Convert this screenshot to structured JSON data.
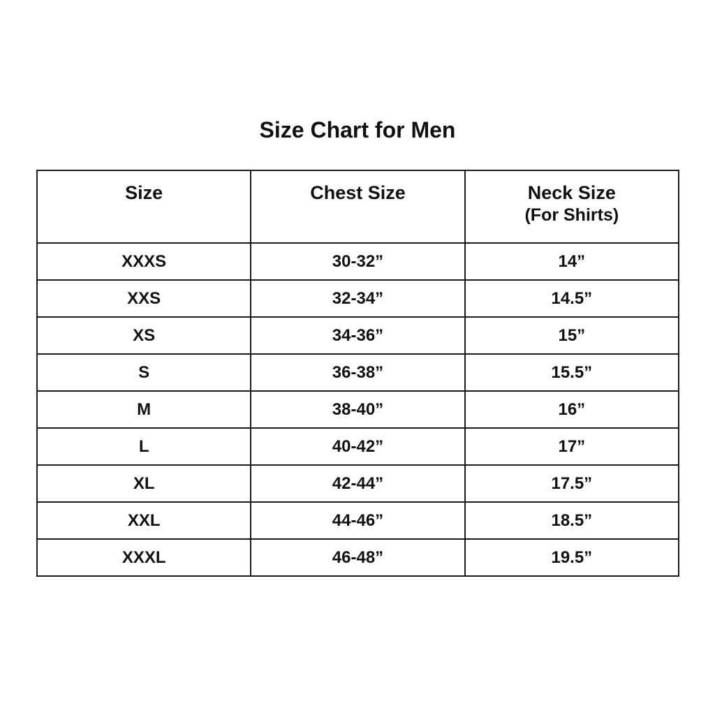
{
  "title": "Size Chart for Men",
  "headers": [
    {
      "label": "Size",
      "sub": ""
    },
    {
      "label": "Chest Size",
      "sub": ""
    },
    {
      "label": "Neck Size",
      "sub": "(For Shirts)"
    }
  ],
  "rows": [
    [
      "XXXS",
      "30-32”",
      "14”"
    ],
    [
      "XXS",
      "32-34”",
      "14.5”"
    ],
    [
      "XS",
      "34-36”",
      "15”"
    ],
    [
      "S",
      "36-38”",
      "15.5”"
    ],
    [
      "M",
      "38-40”",
      "16”"
    ],
    [
      "L",
      "40-42”",
      "17”"
    ],
    [
      "XL",
      "42-44”",
      "17.5”"
    ],
    [
      "XXL",
      "44-46”",
      "18.5”"
    ],
    [
      "XXXL",
      "46-48”",
      "19.5”"
    ]
  ]
}
